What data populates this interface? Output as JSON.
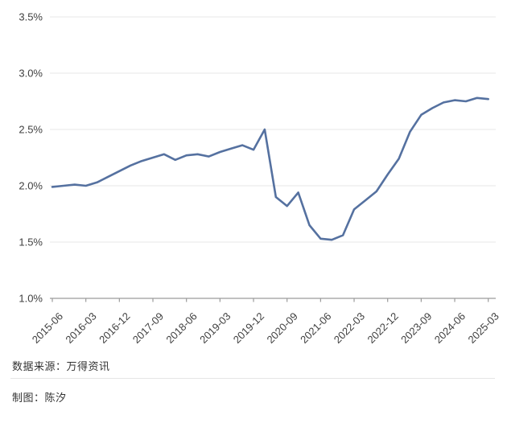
{
  "chart_data": {
    "type": "line",
    "title": "",
    "xlabel": "",
    "ylabel": "",
    "legend": "none",
    "grid": true,
    "ylim": [
      1.0,
      3.5
    ],
    "ytick_values": [
      3.5,
      3.0,
      2.5,
      2.0,
      1.5,
      1.0
    ],
    "ytick_labels": [
      "3.5%",
      "3.0%",
      "2.5%",
      "2.0%",
      "1.5%",
      "1.0%"
    ],
    "xtick_every": 3,
    "xtick_labels_visible": [
      "2015-06",
      "2016-03",
      "2016-12",
      "2017-09",
      "2018-06",
      "2019-03",
      "2019-12",
      "2020-09",
      "2021-06",
      "2022-03",
      "2022-12",
      "2023-09",
      "2024-06",
      "2025-03"
    ],
    "x": [
      "2015-06",
      "2015-09",
      "2015-12",
      "2016-03",
      "2016-06",
      "2016-09",
      "2016-12",
      "2017-03",
      "2017-06",
      "2017-09",
      "2017-12",
      "2018-03",
      "2018-06",
      "2018-09",
      "2018-12",
      "2019-03",
      "2019-06",
      "2019-09",
      "2019-12",
      "2020-03",
      "2020-06",
      "2020-09",
      "2020-12",
      "2021-03",
      "2021-06",
      "2021-09",
      "2021-12",
      "2022-03",
      "2022-06",
      "2022-09",
      "2022-12",
      "2023-03",
      "2023-06",
      "2023-09",
      "2023-12",
      "2024-03",
      "2024-06",
      "2024-09",
      "2024-12",
      "2025-03"
    ],
    "values": [
      1.99,
      2.0,
      2.01,
      2.0,
      2.03,
      2.08,
      2.13,
      2.18,
      2.22,
      2.25,
      2.28,
      2.23,
      2.27,
      2.28,
      2.26,
      2.3,
      2.33,
      2.36,
      2.32,
      2.5,
      1.9,
      1.82,
      1.94,
      1.65,
      1.53,
      1.52,
      1.56,
      1.79,
      1.87,
      1.95,
      2.1,
      2.24,
      2.48,
      2.63,
      2.69,
      2.74,
      2.76,
      2.75,
      2.78,
      2.77
    ],
    "colors": {
      "line": "#5571a0",
      "gridline": "#e7e7e7",
      "axis": "#9b9b9b",
      "tick": "#9b9b9b",
      "axis_label": "#3f3f3f"
    }
  },
  "footer": {
    "source": "数据来源：万得资讯",
    "credit": "制图：陈汐"
  }
}
